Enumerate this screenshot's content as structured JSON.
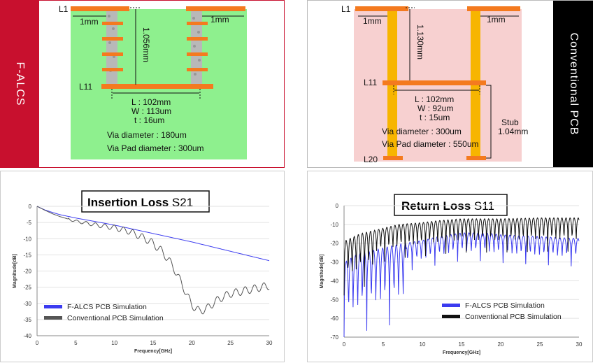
{
  "top_left": {
    "side_label": "F-ALCS",
    "layer_top": "L1",
    "layer_bottom": "L11",
    "pad_offset_left": "1mm",
    "pad_offset_right": "1mm",
    "via_height": "1.056mm",
    "trace_length": "L : 102mm",
    "trace_width": "W : 113um",
    "trace_thickness": "t : 16um",
    "via_diameter": "Via diameter  : 180um",
    "via_pad_diameter": "Via Pad diameter : 300um",
    "colors": {
      "bg": "#8ef08e",
      "metal": "#f47a1f",
      "frame": "#c8102e"
    }
  },
  "top_right": {
    "side_label": "Conventional PCB",
    "layer_top": "L1",
    "layer_mid": "L11",
    "layer_bottom": "L20",
    "pad_offset_left": "1mm",
    "pad_offset_right": "1mm",
    "via_height": "1.130mm",
    "trace_length": "L : 102mm",
    "trace_width": "W : 92um",
    "trace_thickness": "t : 15um",
    "via_diameter": "Via diameter  : 300um",
    "via_pad_diameter": "Via Pad diameter : 550um",
    "stub_label": "Stub",
    "stub_length": "1.04mm",
    "colors": {
      "bg": "#f7d0d0",
      "metal": "#f47a1f",
      "via": "#f7b500",
      "frame": "#000000"
    }
  },
  "chart_data": [
    {
      "type": "line",
      "title": "Insertion Loss",
      "title_param": "S21",
      "xlabel": "Frequency[GHz]",
      "ylabel": "Magnitude[dB]",
      "xlim": [
        0,
        30
      ],
      "ylim": [
        -40,
        0
      ],
      "xticks": [
        "0",
        "5",
        "10",
        "15",
        "20",
        "25",
        "30"
      ],
      "yticks": [
        "0",
        "-5",
        "-10",
        "-15",
        "-20",
        "-25",
        "-30",
        "-35",
        "-40"
      ],
      "legend_position": "bottom-left",
      "series": [
        {
          "name": "F-ALCS PCB Simulation",
          "color": "#3b3bf0",
          "x": [
            0,
            1,
            2,
            3,
            5,
            8,
            10,
            15,
            20,
            25,
            30
          ],
          "y": [
            0,
            -1.1,
            -1.9,
            -2.6,
            -3.6,
            -4.9,
            -5.8,
            -8.4,
            -11.0,
            -13.9,
            -16.8
          ]
        },
        {
          "name": "Conventional PCB Simulation",
          "color": "#555555",
          "x": [
            0,
            1,
            2,
            3,
            5,
            8,
            10,
            12,
            14,
            15,
            16,
            17,
            18,
            19,
            20,
            21,
            22,
            23,
            24,
            25,
            26,
            28,
            30
          ],
          "y": [
            0,
            -1.2,
            -2.3,
            -3.2,
            -4.6,
            -5.9,
            -6.6,
            -7.8,
            -10.0,
            -11.5,
            -13.6,
            -16.5,
            -20.5,
            -25.5,
            -30.5,
            -32.5,
            -31.5,
            -29.5,
            -28.0,
            -27.0,
            -26.5,
            -25.5,
            -24.5
          ]
        }
      ]
    },
    {
      "type": "line",
      "title": "Return Loss",
      "title_param": "S11",
      "xlabel": "Frequency[GHz]",
      "ylabel": "Magnitude[dB]",
      "xlim": [
        0,
        30
      ],
      "ylim": [
        -70,
        0
      ],
      "xticks": [
        "0",
        "5",
        "10",
        "15",
        "20",
        "25",
        "30"
      ],
      "yticks": [
        "0",
        "-10",
        "-20",
        "-30",
        "-40",
        "-50",
        "-60",
        "-70"
      ],
      "legend_position": "bottom-right",
      "series": [
        {
          "name": "F-ALCS PCB Simulation",
          "color": "#3b3bf0",
          "x": [
            0,
            1,
            2,
            3,
            5,
            7,
            10,
            12,
            15,
            18,
            20,
            25,
            30
          ],
          "y": [
            -33,
            -30,
            -28,
            -27,
            -25,
            -23,
            -21,
            -19,
            -17,
            -17,
            -18,
            -19,
            -20
          ],
          "ripple": 5
        },
        {
          "name": "Conventional PCB Simulation",
          "color": "#111111",
          "x": [
            0,
            1,
            2,
            3,
            5,
            7,
            10,
            12,
            15,
            18,
            20,
            25,
            30
          ],
          "y": [
            -22,
            -20,
            -18,
            -17,
            -15,
            -13,
            -12,
            -11,
            -10,
            -10,
            -10,
            -9.5,
            -9.5
          ],
          "ripple": 6
        }
      ]
    }
  ]
}
